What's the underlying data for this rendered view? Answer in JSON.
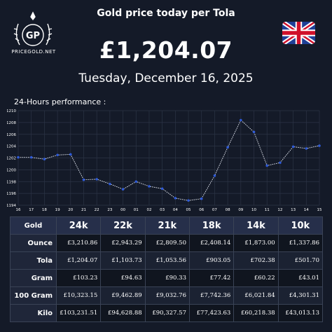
{
  "brand": {
    "logo_initials": "GP",
    "name": "PRICEGOLD.NET"
  },
  "header": {
    "title": "Gold price today per Tola",
    "price": "£1,204.07",
    "date": "Tuesday, December 16, 2025"
  },
  "flag": {
    "icon": "uk-flag-icon",
    "colors": {
      "blue": "#1f3f96",
      "red": "#d0102a",
      "white": "#ffffff"
    }
  },
  "chart_data": {
    "type": "line",
    "title": "24-Hours performance :",
    "x": [
      "16",
      "17",
      "18",
      "19",
      "20",
      "21",
      "22",
      "23",
      "00",
      "01",
      "02",
      "03",
      "04",
      "05",
      "06",
      "07",
      "08",
      "09",
      "10",
      "11",
      "12",
      "13",
      "14",
      "15"
    ],
    "series": [
      {
        "values": [
          1202.1,
          1202.1,
          1201.8,
          1202.5,
          1202.6,
          1198.3,
          1198.4,
          1197.6,
          1196.7,
          1198.0,
          1197.2,
          1196.8,
          1195.2,
          1194.8,
          1195.1,
          1199.0,
          1203.8,
          1208.4,
          1206.4,
          1200.7,
          1201.2,
          1203.9,
          1203.6,
          1204.07
        ]
      }
    ],
    "yticks": [
      "1194",
      "1196",
      "1198",
      "1200",
      "1202",
      "1204",
      "1206",
      "1208",
      "1210"
    ],
    "ylim": [
      1194,
      1210
    ],
    "grid": true,
    "colors": {
      "line": "#e8ecf6",
      "point": "#2f5bd8",
      "grid": "#2c3446",
      "bg": "#141a28"
    }
  },
  "table": {
    "corner": "Gold",
    "columns": [
      "24k",
      "22k",
      "21k",
      "18k",
      "14k",
      "10k"
    ],
    "rows": [
      {
        "label": "Ounce",
        "values": [
          "£3,210.86",
          "£2,943.29",
          "£2,809.50",
          "£2,408.14",
          "£1,873.00",
          "£1,337.86"
        ]
      },
      {
        "label": "Tola",
        "values": [
          "£1,204.07",
          "£1,103.73",
          "£1,053.56",
          "£903.05",
          "£702.38",
          "£501.70"
        ]
      },
      {
        "label": "Gram",
        "values": [
          "£103.23",
          "£94.63",
          "£90.33",
          "£77.42",
          "£60.22",
          "£43.01"
        ]
      },
      {
        "label": "100 Gram",
        "values": [
          "£10,323.15",
          "£9,462.89",
          "£9,032.76",
          "£7,742.36",
          "£6,021.84",
          "£4,301.31"
        ]
      },
      {
        "label": "Kilo",
        "values": [
          "£103,231.51",
          "£94,628.88",
          "£90,327.57",
          "£77,423.63",
          "£60,218.38",
          "£43,013.13"
        ]
      }
    ]
  }
}
